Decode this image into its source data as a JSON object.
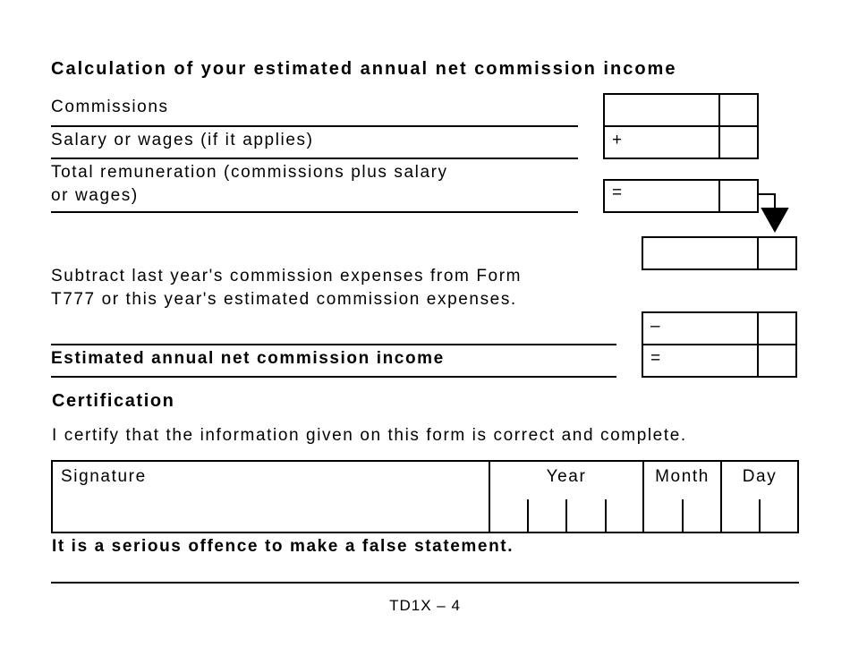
{
  "calculation": {
    "title": "Calculation of your estimated annual net commission income",
    "rows": [
      {
        "label": "Commissions"
      },
      {
        "label": "Salary or wages (if it applies)",
        "operator": "+"
      },
      {
        "label": "Total remuneration (commissions plus salary or wages)",
        "operator": "="
      },
      {
        "label": "Subtract last year's commission expenses from Form T777 or this year's estimated commission expenses.",
        "operator": "–"
      },
      {
        "label": "Estimated annual net commission income",
        "operator": "="
      }
    ]
  },
  "certification": {
    "title": "Certification",
    "statement": "I certify that the information given on this form is correct and complete.",
    "fields": {
      "signature": "Signature",
      "year": "Year",
      "month": "Month",
      "day": "Day"
    },
    "warning": "It is a serious offence to make a false statement."
  },
  "footer": {
    "page": "TD1X – 4"
  }
}
